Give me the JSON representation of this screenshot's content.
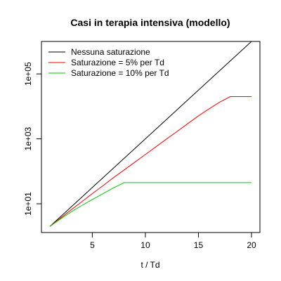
{
  "chart_data": {
    "type": "line",
    "title": "Casi in terapia intensiva (modello)",
    "xlabel": "t / Td",
    "ylabel": "",
    "xlim": [
      1,
      20
    ],
    "ylim": [
      1.3,
      1000000
    ],
    "y_scale": "log",
    "grid": false,
    "legend_position": "top-left",
    "x_ticks": [
      5,
      10,
      15,
      20
    ],
    "x_tick_labels": [
      "5",
      "10",
      "15",
      "20"
    ],
    "y_ticks": [
      10,
      1000,
      100000
    ],
    "y_tick_labels": [
      "1e+01",
      "1e+03",
      "1e+05"
    ],
    "series": [
      {
        "name": "Nessuna saturazione",
        "color": "#000000",
        "x": [
          1,
          20
        ],
        "y": [
          2,
          1000000
        ]
      },
      {
        "name": "Saturazione = 5% per Td",
        "color": "#ff0000",
        "x": [
          1,
          2,
          3,
          4,
          5,
          6,
          7,
          8,
          9,
          10,
          11,
          12,
          13,
          14,
          15,
          16,
          17,
          18,
          19,
          20
        ],
        "y": [
          2,
          3.6,
          6.5,
          11.5,
          20.5,
          36,
          64,
          110,
          190,
          330,
          570,
          990,
          1700,
          2950,
          5100,
          8400,
          13500,
          20000,
          20000,
          20000
        ]
      },
      {
        "name": "Saturazione = 10% per Td",
        "color": "#00cc00",
        "x": [
          1,
          2,
          3,
          4,
          5,
          6,
          7,
          8,
          9,
          10,
          11,
          12,
          13,
          14,
          15,
          16,
          17,
          18,
          19,
          20
        ],
        "y": [
          2,
          3.4,
          5.6,
          8.8,
          13.5,
          20.5,
          31,
          45,
          45,
          45,
          45,
          45,
          45,
          45,
          45,
          45,
          45,
          45,
          45,
          45
        ]
      }
    ]
  }
}
